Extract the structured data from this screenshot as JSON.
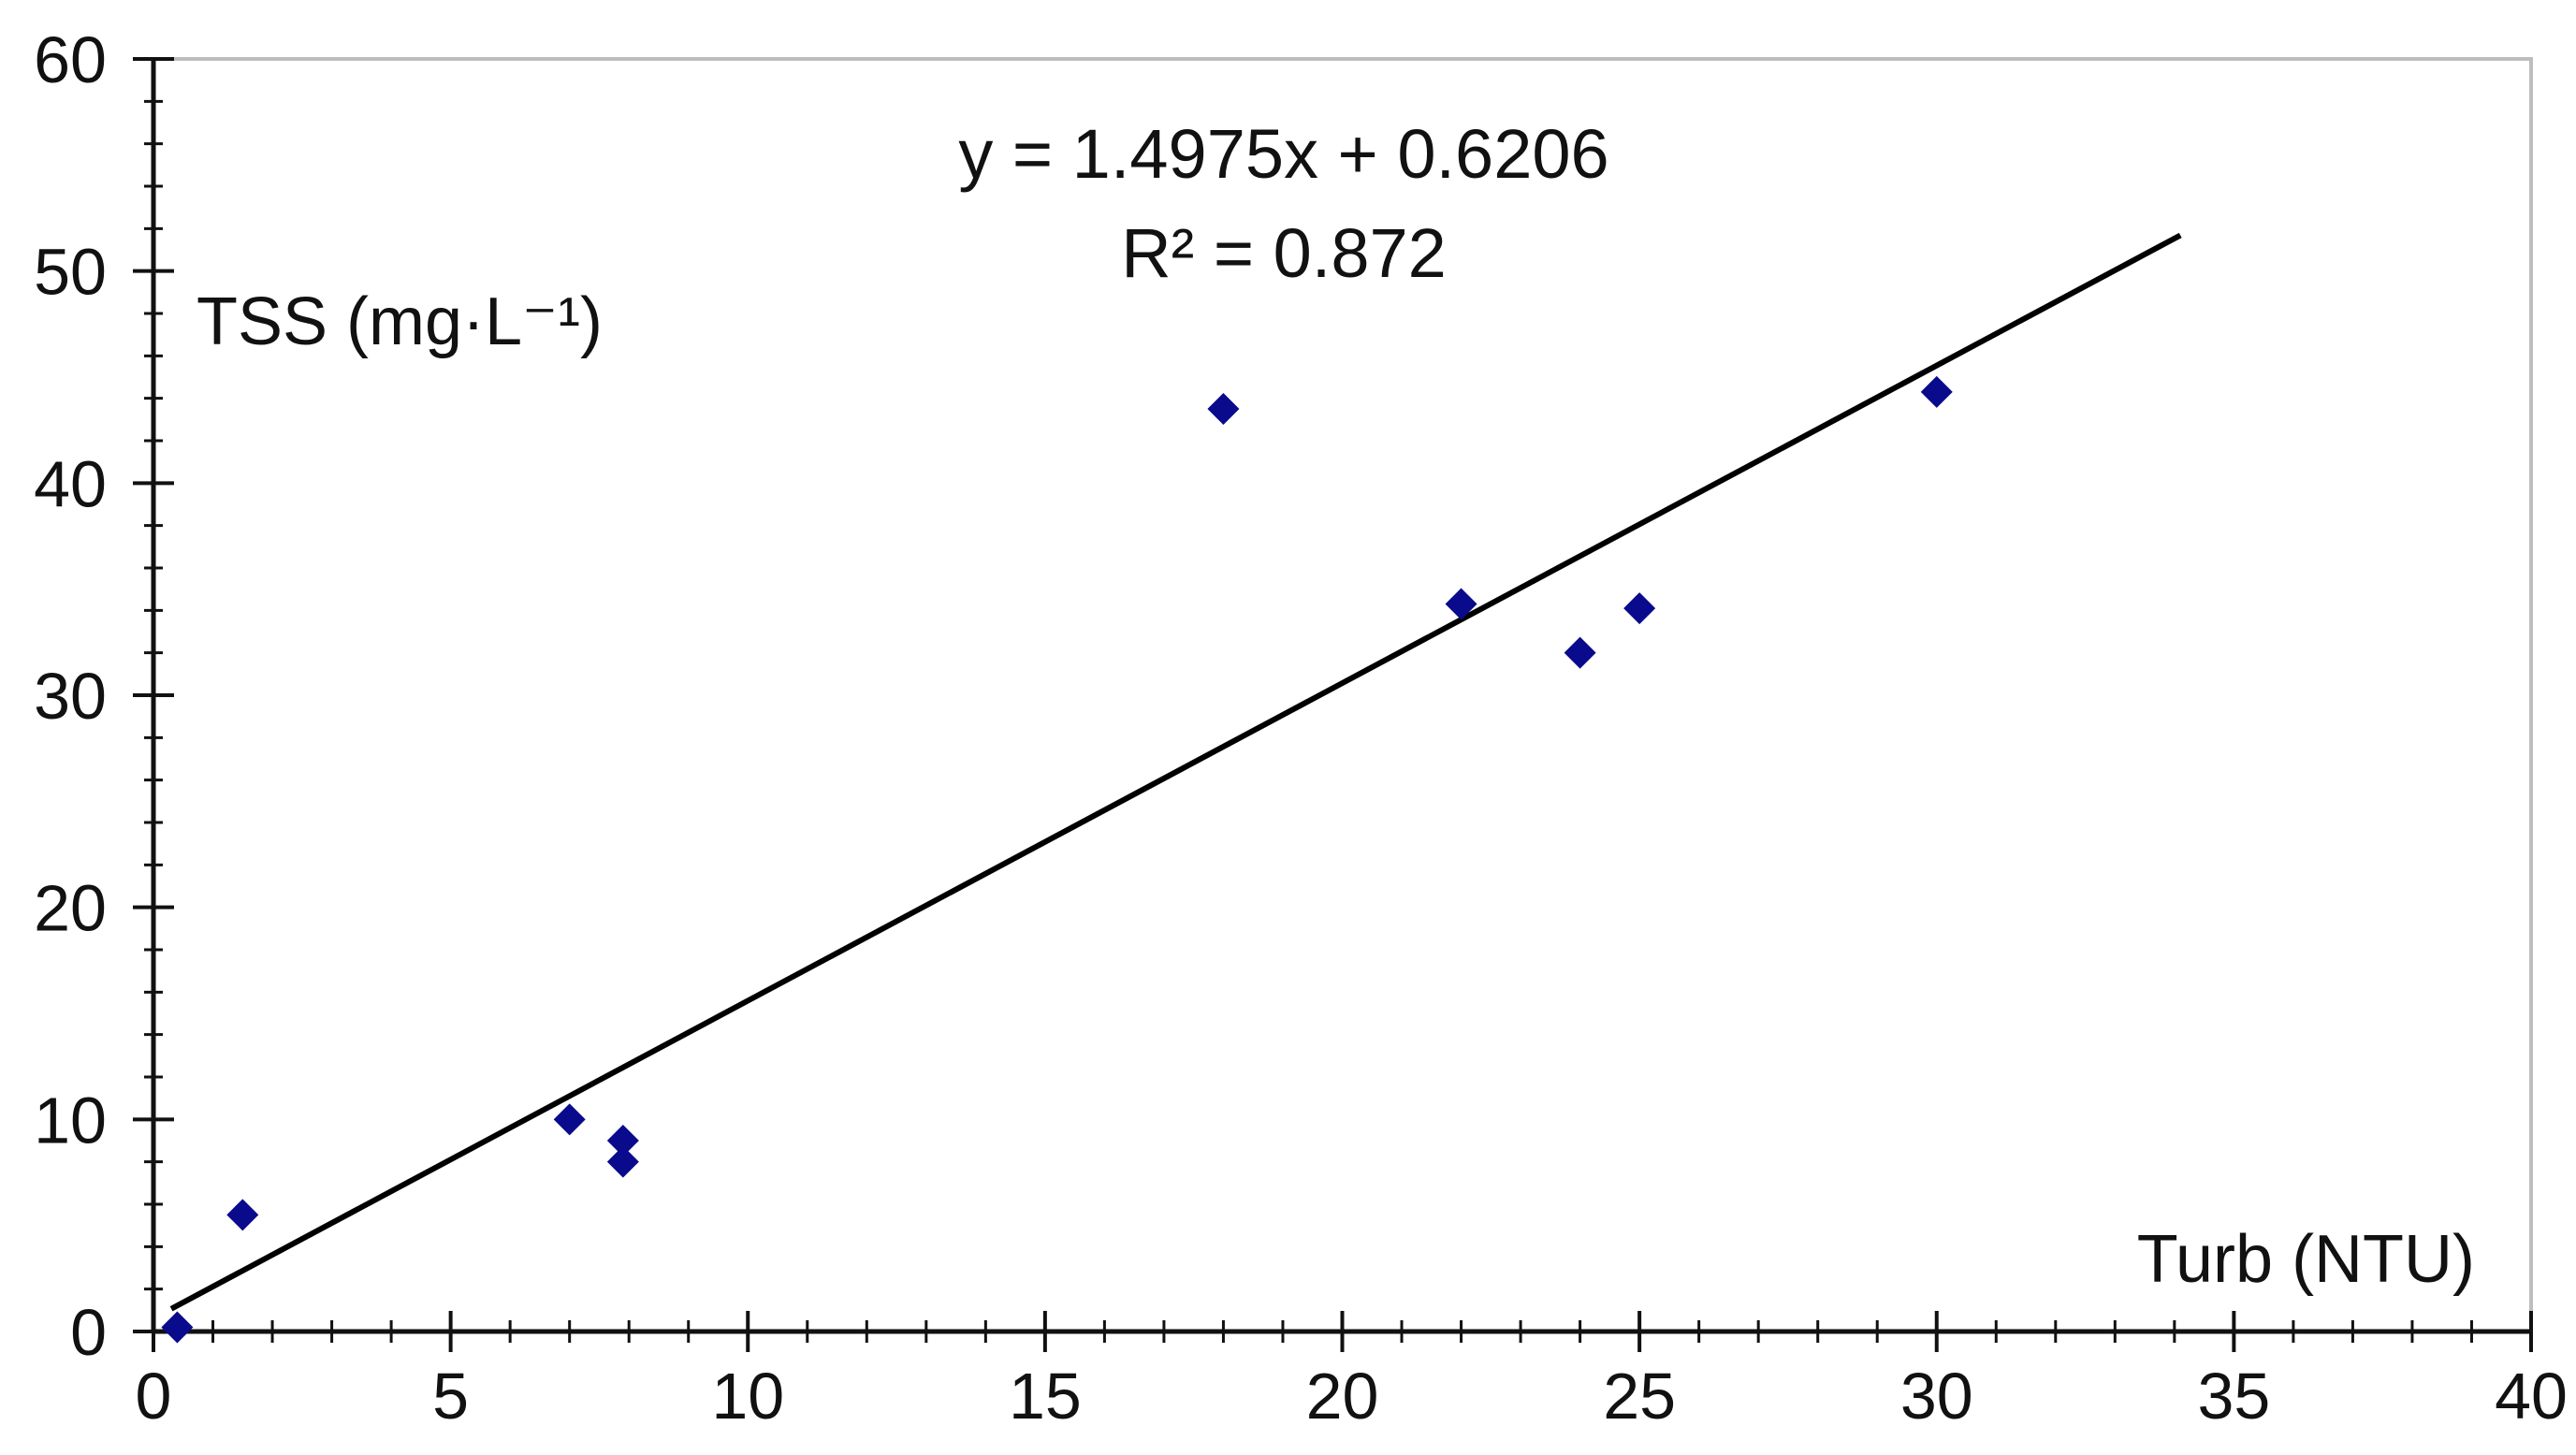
{
  "chart_data": {
    "type": "scatter",
    "title": "",
    "xlabel": "Turb (NTU)",
    "ylabel": "TSS (mg·L⁻¹)",
    "xlim": [
      0,
      40
    ],
    "ylim": [
      0,
      60
    ],
    "x_ticks": [
      "0",
      "5",
      "10",
      "15",
      "20",
      "25",
      "30",
      "35",
      "40"
    ],
    "y_ticks": [
      "0",
      "10",
      "20",
      "30",
      "40",
      "50",
      "60"
    ],
    "grid": false,
    "legend": "none",
    "series": [
      {
        "x": [
          0.4,
          1.5,
          7.0,
          7.9,
          7.9,
          18.0,
          22.0,
          24.0,
          25.0,
          30.0
        ],
        "y": [
          0.2,
          5.5,
          10.0,
          9.0,
          8.0,
          43.5,
          34.3,
          32.0,
          34.1,
          44.3
        ],
        "color": "#0a0a8c",
        "marker": "diamond"
      }
    ],
    "trendline": {
      "slope": 1.4975,
      "intercept": 0.6206,
      "x_range": [
        0.3,
        34.1
      ],
      "color": "#000000"
    },
    "annotations": {
      "equation": "y = 1.4975x + 0.6206",
      "r_squared": "R² = 0.872"
    }
  }
}
